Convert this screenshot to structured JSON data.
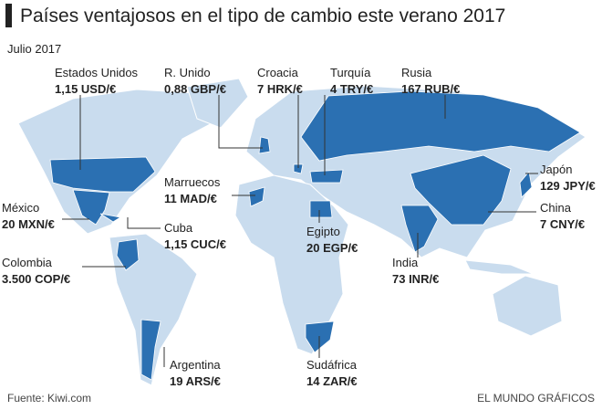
{
  "header": {
    "title": "Países ventajosos en el tipo de cambio este verano 2017",
    "subtitle": "Julio 2017"
  },
  "countries": [
    {
      "name": "Estados Unidos",
      "rate": "1,15 USD/€"
    },
    {
      "name": "R. Unido",
      "rate": "0,88 GBP/€"
    },
    {
      "name": "Croacia",
      "rate": "7 HRK/€"
    },
    {
      "name": "Turquía",
      "rate": "4 TRY/€"
    },
    {
      "name": "Rusia",
      "rate": "167 RUB/€"
    },
    {
      "name": "Japón",
      "rate": "129 JPY/€"
    },
    {
      "name": "China",
      "rate": "7 CNY/€"
    },
    {
      "name": "Marruecos",
      "rate": "11 MAD/€"
    },
    {
      "name": "México",
      "rate": "20 MXN/€"
    },
    {
      "name": "Cuba",
      "rate": "1,15 CUC/€"
    },
    {
      "name": "Egipto",
      "rate": "20 EGP/€"
    },
    {
      "name": "India",
      "rate": "73 INR/€"
    },
    {
      "name": "Colombia",
      "rate": "3.500 COP/€"
    },
    {
      "name": "Argentina",
      "rate": "19 ARS/€"
    },
    {
      "name": "Sudáfrica",
      "rate": "14 ZAR/€"
    }
  ],
  "footer": {
    "source": "Fuente: Kiwi.com",
    "credit": "EL MUNDO GRÁFICOS"
  }
}
